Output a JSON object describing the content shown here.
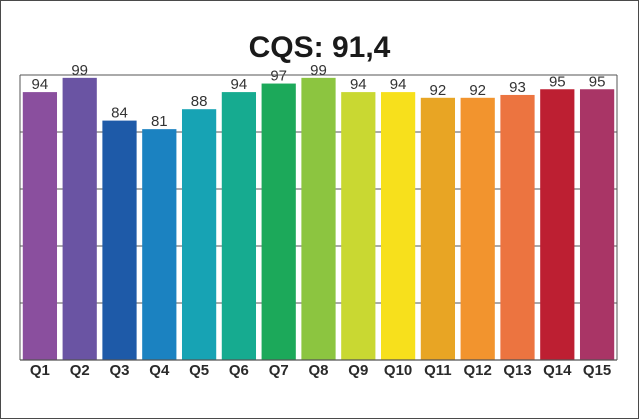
{
  "chart_data": {
    "type": "bar",
    "title": "CQS: 91,4",
    "xlabel": "",
    "ylabel": "",
    "categories": [
      "Q1",
      "Q2",
      "Q3",
      "Q4",
      "Q5",
      "Q6",
      "Q7",
      "Q8",
      "Q9",
      "Q10",
      "Q11",
      "Q12",
      "Q13",
      "Q14",
      "Q15"
    ],
    "values": [
      94,
      99,
      84,
      81,
      88,
      94,
      97,
      99,
      94,
      94,
      92,
      92,
      93,
      95,
      95
    ],
    "colors": [
      "#8a4f9e",
      "#6a54a3",
      "#1e5aa8",
      "#1b82c1",
      "#17a3b4",
      "#16ab90",
      "#1ca95a",
      "#8cc540",
      "#c9d832",
      "#f7e01c",
      "#e8a524",
      "#f2942e",
      "#ec7440",
      "#bd1f32",
      "#a93566"
    ],
    "ylim": [
      0,
      100
    ],
    "grid": true,
    "legend": "none"
  }
}
